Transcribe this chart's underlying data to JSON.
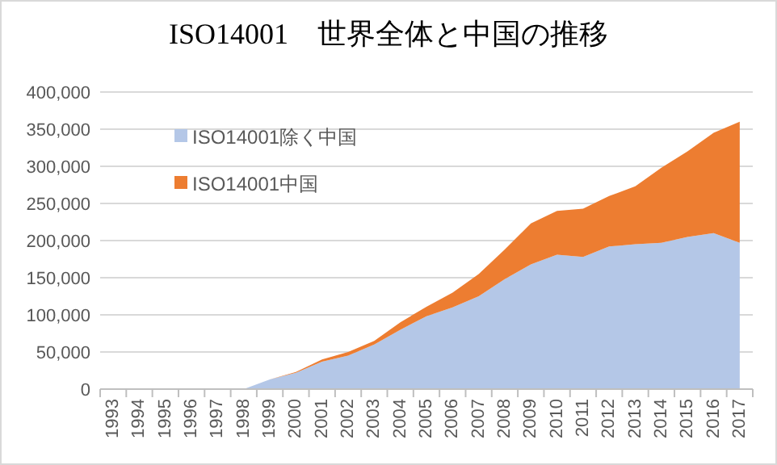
{
  "chart_data": {
    "type": "area",
    "title": "ISO14001　世界全体と中国の推移",
    "stacked": true,
    "legend": "top left",
    "grid": "y",
    "categories": [
      "1993",
      "1994",
      "1995",
      "1996",
      "1997",
      "1998",
      "1999",
      "2000",
      "2001",
      "2002",
      "2003",
      "2004",
      "2005",
      "2006",
      "2007",
      "2008",
      "2009",
      "2010",
      "2011",
      "2012",
      "2013",
      "2014",
      "2015",
      "2016",
      "2017"
    ],
    "ylim": [
      0,
      400000
    ],
    "yticks": [
      {
        "value": 0,
        "label": "0"
      },
      {
        "value": 50000,
        "label": "50,000"
      },
      {
        "value": 100000,
        "label": "100,000"
      },
      {
        "value": 150000,
        "label": "150,000"
      },
      {
        "value": 200000,
        "label": "200,000"
      },
      {
        "value": 250000,
        "label": "250,000"
      },
      {
        "value": 300000,
        "label": "300,000"
      },
      {
        "value": 350000,
        "label": "350,000"
      },
      {
        "value": 400000,
        "label": "400,000"
      }
    ],
    "series": [
      {
        "name": "ISO14001除く中国",
        "color": "#b4c7e7",
        "values": [
          0,
          0,
          0,
          0,
          0,
          0,
          13000,
          22000,
          37000,
          45000,
          60000,
          80000,
          98000,
          110000,
          125000,
          148000,
          168000,
          181000,
          178000,
          192000,
          195000,
          197000,
          205000,
          210000,
          197000
        ]
      },
      {
        "name": "ISO14001中国",
        "color": "#ed7d31",
        "values": [
          0,
          0,
          0,
          0,
          0,
          0,
          0,
          1000,
          3000,
          5000,
          5000,
          10000,
          13000,
          20000,
          30000,
          40000,
          55000,
          59000,
          65000,
          68000,
          78000,
          101000,
          115000,
          135000,
          163000
        ]
      }
    ]
  }
}
